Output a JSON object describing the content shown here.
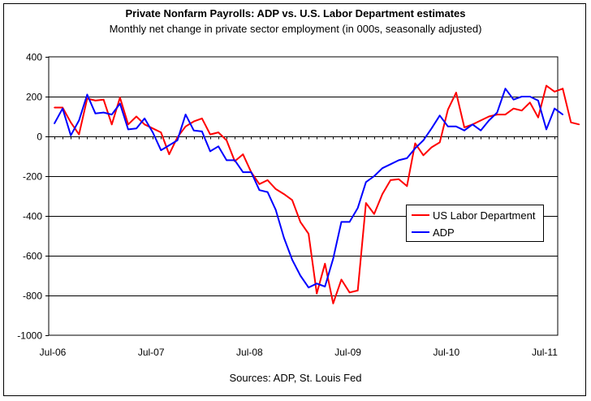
{
  "chart_data": {
    "type": "line",
    "title": "Private Nonfarm Payrolls: ADP vs. U.S. Labor Department estimates",
    "subtitle": "Monthly net change in private sector employment (in 000s, seasonally adjusted)",
    "source": "Sources: ADP, St. Louis Fed",
    "xlabel": "",
    "ylabel": "",
    "ylim": [
      -1000,
      400
    ],
    "yticks": [
      400,
      200,
      0,
      -200,
      -400,
      -600,
      -800,
      -1000
    ],
    "xticks": [
      {
        "label": "Jul-06",
        "index": 0
      },
      {
        "label": "Jul-07",
        "index": 12
      },
      {
        "label": "Jul-08",
        "index": 24
      },
      {
        "label": "Jul-09",
        "index": 36
      },
      {
        "label": "Jul-10",
        "index": 48
      },
      {
        "label": "Jul-11",
        "index": 60
      }
    ],
    "x_start": "Jul-06",
    "grid": "horizontal",
    "legend_position": "right",
    "series": [
      {
        "name": "US Labor Department",
        "color": "#ff0000",
        "values": [
          145,
          145,
          70,
          10,
          190,
          180,
          185,
          60,
          195,
          60,
          100,
          60,
          40,
          20,
          -90,
          -5,
          50,
          75,
          90,
          10,
          20,
          -20,
          -125,
          -90,
          -180,
          -240,
          -220,
          -265,
          -290,
          -320,
          -430,
          -490,
          -790,
          -640,
          -840,
          -720,
          -785,
          -775,
          -335,
          -390,
          -290,
          -220,
          -215,
          -250,
          -35,
          -95,
          -55,
          -30,
          135,
          220,
          45,
          60,
          80,
          100,
          110,
          110,
          140,
          130,
          170,
          95,
          255,
          225,
          240,
          70,
          60
        ]
      },
      {
        "name": "ADP",
        "color": "#0000ff",
        "values": [
          65,
          140,
          5,
          80,
          210,
          115,
          120,
          110,
          165,
          35,
          40,
          90,
          20,
          -70,
          -45,
          -20,
          110,
          30,
          25,
          -75,
          -50,
          -120,
          -120,
          -180,
          -180,
          -270,
          -280,
          -370,
          -510,
          -620,
          -700,
          -760,
          -740,
          -755,
          -615,
          -430,
          -430,
          -360,
          -230,
          -200,
          -160,
          -140,
          -120,
          -110,
          -60,
          -20,
          40,
          105,
          50,
          50,
          30,
          60,
          30,
          80,
          120,
          240,
          185,
          200,
          200,
          180,
          35,
          140,
          110
        ]
      }
    ]
  }
}
